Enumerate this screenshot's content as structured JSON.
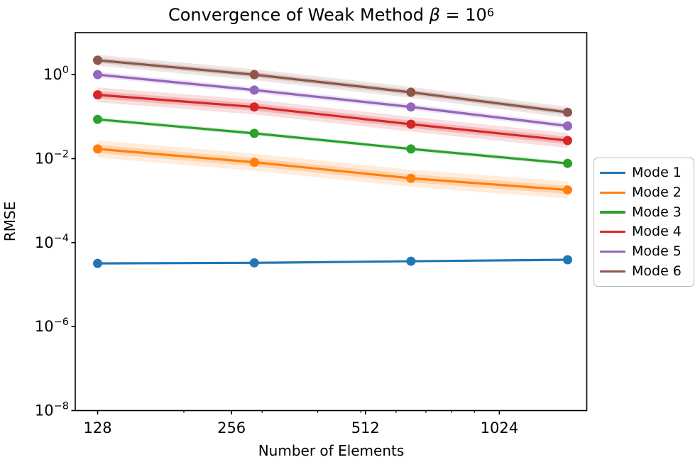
{
  "figure": {
    "background": "#ffffff",
    "title": {
      "full": "Convergence of Weak Method β = 10^6",
      "prefix": "Convergence of Weak Method ",
      "beta": "β",
      "mid": " = 10",
      "sup": "6"
    }
  },
  "chart_data": {
    "type": "line",
    "title": "Convergence of Weak Method β = 10^6",
    "xlabel": "Number of Elements",
    "ylabel": "RMSE",
    "x_scale": "log",
    "y_scale": "log",
    "xlim": [
      114,
      1610
    ],
    "ylim": [
      1e-08,
      10
    ],
    "grid": false,
    "legend_position": "outside-right",
    "x": [
      128,
      288,
      648,
      1458
    ],
    "x_major_ticks": [
      {
        "value": 128,
        "label": "128"
      },
      {
        "value": 256,
        "label": "256"
      },
      {
        "value": 512,
        "label": "512"
      },
      {
        "value": 1024,
        "label": "1024"
      }
    ],
    "x_minor_ticks": [
      200,
      300,
      400,
      500,
      600,
      700,
      800,
      900
    ],
    "y_major_ticks": [
      {
        "value": 1.0,
        "base": "10",
        "exp": "0"
      },
      {
        "value": 0.01,
        "base": "10",
        "exp": "−2"
      },
      {
        "value": 0.0001,
        "base": "10",
        "exp": "−4"
      },
      {
        "value": 1e-06,
        "base": "10",
        "exp": "−6"
      },
      {
        "value": 1e-08,
        "base": "10",
        "exp": "−8"
      }
    ],
    "series": [
      {
        "name": "Mode 1",
        "color": "#1f77b4",
        "values": [
          3.2e-05,
          3.3e-05,
          3.6e-05,
          3.9e-05
        ],
        "band_factor_inner": 1.02,
        "band_factor_outer": 1.05
      },
      {
        "name": "Mode 2",
        "color": "#ff7f0e",
        "values": [
          0.017,
          0.0082,
          0.0034,
          0.0018
        ],
        "band_factor_inner": 1.25,
        "band_factor_outer": 1.6
      },
      {
        "name": "Mode 3",
        "color": "#2ca02c",
        "values": [
          0.086,
          0.04,
          0.017,
          0.0077
        ],
        "band_factor_inner": 1.05,
        "band_factor_outer": 1.12
      },
      {
        "name": "Mode 4",
        "color": "#d62728",
        "values": [
          0.33,
          0.17,
          0.066,
          0.027
        ],
        "band_factor_inner": 1.22,
        "band_factor_outer": 1.5
      },
      {
        "name": "Mode 5",
        "color": "#9467bd",
        "values": [
          1.0,
          0.43,
          0.17,
          0.06
        ],
        "band_factor_inner": 1.08,
        "band_factor_outer": 1.18
      },
      {
        "name": "Mode 6",
        "color": "#8c564b",
        "values": [
          2.2,
          1.0,
          0.38,
          0.127
        ],
        "band_factor_inner": 1.15,
        "band_factor_outer": 1.35
      }
    ]
  },
  "layout_colors": {
    "axis": "#000000",
    "legend_border": "#b9b9b9"
  }
}
